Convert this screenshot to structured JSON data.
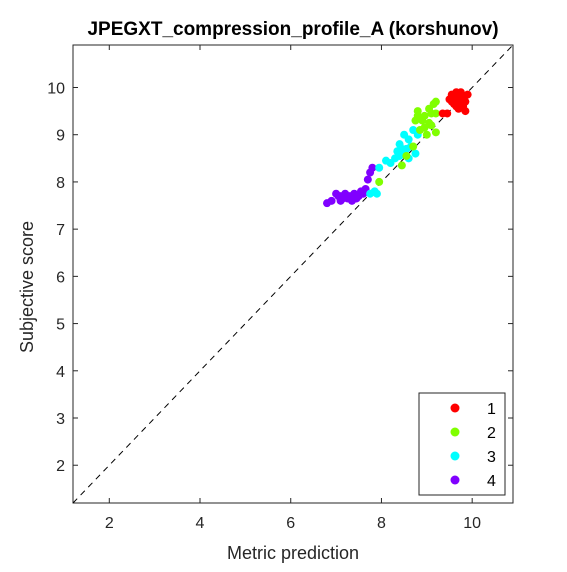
{
  "chart_data": {
    "type": "scatter",
    "title": "JPEGXT_compression_profile_A (korshunov)",
    "xlabel": "Metric prediction",
    "ylabel": "Subjective score",
    "xlim": [
      1.2,
      10.9
    ],
    "ylim": [
      1.2,
      10.9
    ],
    "xticks": [
      "2",
      "4",
      "6",
      "8",
      "10"
    ],
    "yticks": [
      "2",
      "3",
      "4",
      "5",
      "6",
      "7",
      "8",
      "9",
      "10"
    ],
    "diagonal_reference": true,
    "legend_position": "bottom-right",
    "series": [
      {
        "name": "1",
        "color": "#ff0000",
        "points": [
          [
            9.45,
            9.45
          ],
          [
            9.55,
            9.7
          ],
          [
            9.6,
            9.8
          ],
          [
            9.65,
            9.75
          ],
          [
            9.7,
            9.85
          ],
          [
            9.75,
            9.9
          ],
          [
            9.8,
            9.8
          ],
          [
            9.85,
            9.7
          ],
          [
            9.65,
            9.6
          ],
          [
            9.7,
            9.55
          ],
          [
            9.85,
            9.5
          ],
          [
            9.55,
            9.85
          ],
          [
            9.9,
            9.85
          ],
          [
            9.75,
            9.7
          ],
          [
            9.6,
            9.65
          ],
          [
            9.8,
            9.6
          ],
          [
            9.5,
            9.75
          ],
          [
            9.65,
            9.9
          ],
          [
            9.35,
            9.45
          ],
          [
            9.7,
            9.65
          ]
        ]
      },
      {
        "name": "2",
        "color": "#80ff00",
        "points": [
          [
            7.95,
            8.0
          ],
          [
            8.45,
            8.35
          ],
          [
            8.55,
            8.55
          ],
          [
            8.7,
            8.75
          ],
          [
            8.75,
            9.3
          ],
          [
            8.8,
            9.5
          ],
          [
            8.9,
            9.3
          ],
          [
            8.95,
            9.4
          ],
          [
            9.05,
            9.55
          ],
          [
            9.15,
            9.65
          ],
          [
            9.2,
            9.7
          ],
          [
            9.1,
            9.2
          ],
          [
            9.2,
            9.05
          ],
          [
            8.85,
            9.1
          ],
          [
            9.05,
            9.25
          ],
          [
            9.1,
            9.45
          ],
          [
            8.95,
            9.15
          ],
          [
            8.8,
            9.4
          ],
          [
            9.2,
            9.45
          ],
          [
            9.0,
            9.0
          ]
        ]
      },
      {
        "name": "3",
        "color": "#00ffff",
        "points": [
          [
            7.75,
            7.75
          ],
          [
            7.9,
            7.75
          ],
          [
            7.95,
            8.3
          ],
          [
            8.1,
            8.45
          ],
          [
            8.2,
            8.4
          ],
          [
            8.3,
            8.5
          ],
          [
            8.35,
            8.65
          ],
          [
            8.4,
            8.8
          ],
          [
            8.5,
            8.65
          ],
          [
            8.55,
            8.7
          ],
          [
            8.5,
            9.0
          ],
          [
            8.6,
            8.9
          ],
          [
            8.7,
            9.1
          ],
          [
            8.75,
            8.6
          ],
          [
            8.65,
            8.75
          ],
          [
            8.4,
            8.55
          ],
          [
            8.8,
            9.0
          ],
          [
            8.6,
            8.5
          ],
          [
            8.45,
            8.7
          ],
          [
            7.85,
            7.8
          ]
        ]
      },
      {
        "name": "4",
        "color": "#8000ff",
        "points": [
          [
            6.8,
            7.55
          ],
          [
            6.9,
            7.6
          ],
          [
            7.0,
            7.75
          ],
          [
            7.05,
            7.7
          ],
          [
            7.1,
            7.6
          ],
          [
            7.15,
            7.65
          ],
          [
            7.2,
            7.75
          ],
          [
            7.3,
            7.7
          ],
          [
            7.35,
            7.6
          ],
          [
            7.4,
            7.75
          ],
          [
            7.45,
            7.65
          ],
          [
            7.5,
            7.7
          ],
          [
            7.55,
            7.8
          ],
          [
            7.6,
            7.75
          ],
          [
            7.65,
            7.85
          ],
          [
            7.7,
            8.05
          ],
          [
            7.75,
            8.2
          ],
          [
            7.8,
            8.3
          ],
          [
            7.1,
            7.7
          ],
          [
            7.25,
            7.65
          ]
        ]
      }
    ]
  }
}
